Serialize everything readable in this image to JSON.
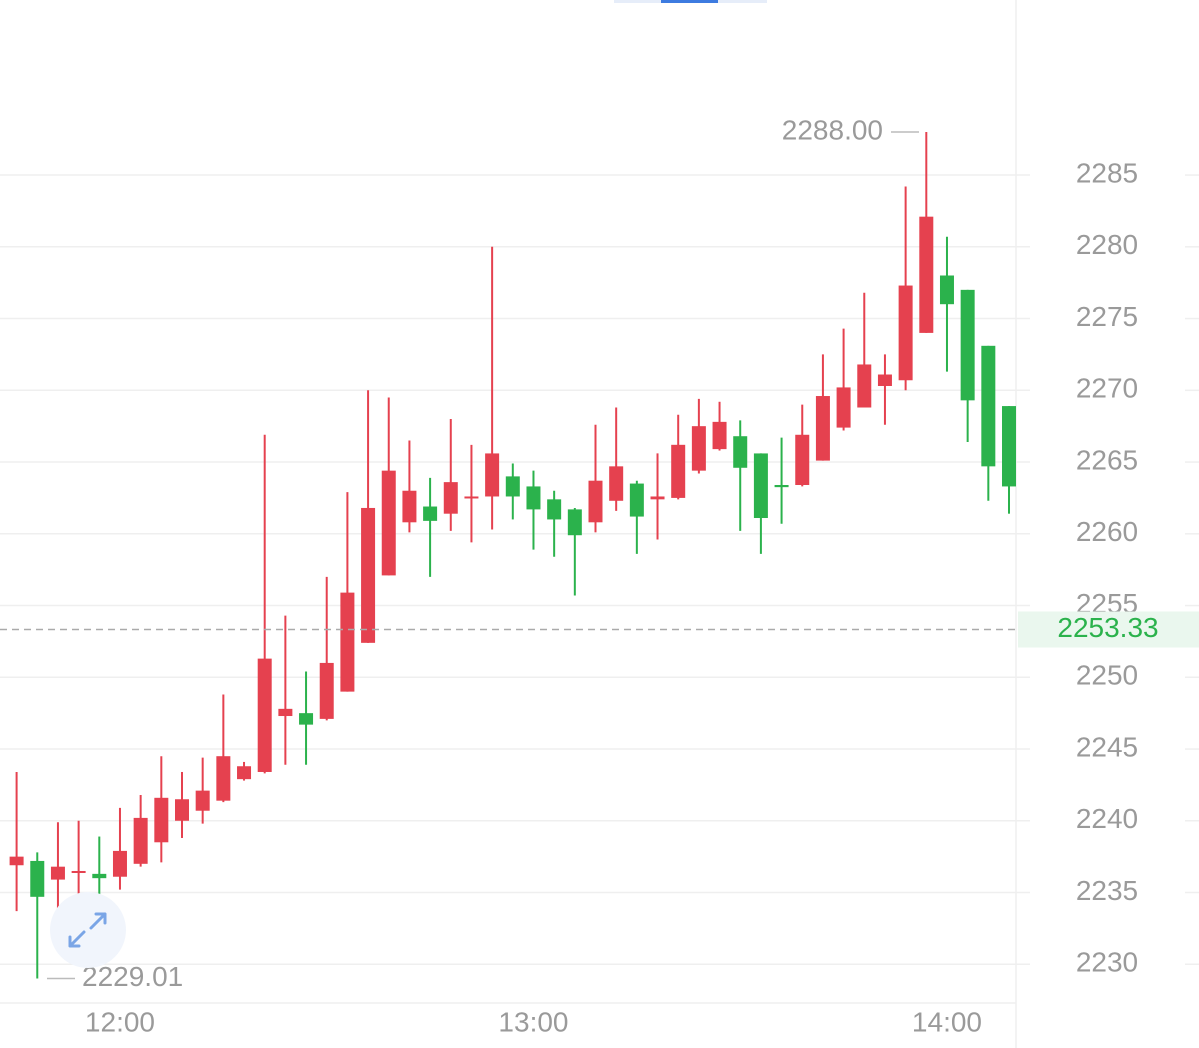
{
  "chart_data": {
    "type": "candlestick",
    "categories": [
      null,
      null,
      null,
      null,
      null,
      "12:00",
      null,
      null,
      null,
      null,
      null,
      null,
      null,
      null,
      null,
      null,
      null,
      null,
      null,
      null,
      null,
      null,
      null,
      null,
      null,
      "13:00",
      null,
      null,
      null,
      null,
      null,
      null,
      null,
      null,
      null,
      null,
      null,
      null,
      null,
      null,
      null,
      null,
      null,
      null,
      null,
      "14:00",
      null,
      null,
      null
    ],
    "open": [
      2236.9,
      2237.2,
      2235.9,
      2236.4,
      2236.3,
      2236.1,
      2237.0,
      2238.5,
      2240.0,
      2240.7,
      2241.4,
      2242.9,
      2243.4,
      2247.3,
      2247.5,
      2247.1,
      2249.0,
      2252.4,
      2257.1,
      2260.8,
      2261.9,
      2261.4,
      2262.5,
      2262.6,
      2264.0,
      2263.3,
      2262.4,
      2261.7,
      2260.8,
      2262.3,
      2263.5,
      2262.4,
      2262.5,
      2264.4,
      2265.9,
      2266.8,
      2265.6,
      2263.4,
      2263.4,
      2265.1,
      2267.4,
      2268.8,
      2270.3,
      2270.7,
      2274.0,
      2278.0,
      2277.0,
      2273.1,
      2268.9
    ],
    "high": [
      2243.4,
      2237.8,
      2239.9,
      2240.0,
      2238.9,
      2240.9,
      2241.8,
      2244.5,
      2243.4,
      2244.4,
      2248.8,
      2244.1,
      2266.9,
      2254.3,
      2250.4,
      2257.0,
      2262.9,
      2270.0,
      2269.5,
      2266.5,
      2263.9,
      2268.0,
      2266.2,
      2280.0,
      2264.9,
      2264.4,
      2263.0,
      2261.8,
      2267.6,
      2268.8,
      2263.7,
      2265.6,
      2268.3,
      2269.4,
      2269.2,
      2267.9,
      2265.6,
      2266.7,
      2269.0,
      2272.5,
      2274.3,
      2276.8,
      2272.5,
      2284.2,
      2288,
      2280.7,
      2277.0,
      2273.1,
      2268.9
    ],
    "low": [
      2233.7,
      2229.01,
      2233.6,
      2234.1,
      2234.6,
      2235.2,
      2236.8,
      2237.1,
      2238.8,
      2239.8,
      2241.3,
      2242.8,
      2243.3,
      2243.9,
      2243.9,
      2247.0,
      2249.0,
      2252.4,
      2257.1,
      2260.1,
      2257.0,
      2260.2,
      2259.4,
      2260.3,
      2261.0,
      2258.9,
      2258.4,
      2255.7,
      2260.1,
      2261.6,
      2258.6,
      2259.6,
      2262.4,
      2264.2,
      2265.8,
      2260.2,
      2258.6,
      2260.7,
      2263.3,
      2265.1,
      2267.2,
      2268.8,
      2267.6,
      2270.0,
      2274.0,
      2271.3,
      2266.4,
      2262.3,
      2261.4
    ],
    "close": [
      2237.5,
      2234.7,
      2236.8,
      2236.5,
      2236.0,
      2237.9,
      2240.2,
      2241.6,
      2241.5,
      2242.1,
      2244.5,
      2243.8,
      2251.3,
      2247.8,
      2246.7,
      2251.0,
      2255.9,
      2261.8,
      2264.4,
      2263.0,
      2260.9,
      2263.6,
      2262.6,
      2265.6,
      2262.6,
      2261.7,
      2261.0,
      2259.9,
      2263.7,
      2264.7,
      2261.2,
      2262.6,
      2266.2,
      2267.5,
      2267.8,
      2264.6,
      2261.1,
      2263.25,
      2266.9,
      2269.6,
      2270.2,
      2271.8,
      2271.1,
      2277.3,
      2282.1,
      2276.0,
      2269.3,
      2264.7,
      2263.3
    ],
    "up_color": "#e5414f",
    "down_color": "#2bb24c",
    "ylim": [
      2227.3,
      2297.2
    ],
    "yticks": [
      2230,
      2235,
      2240,
      2245,
      2250,
      2255,
      2260,
      2265,
      2270,
      2275,
      2280,
      2285
    ],
    "grid": true,
    "max_marker": {
      "value": 2288,
      "label": "2288.00"
    },
    "min_marker": {
      "value": 2229.01,
      "label": "2229.01"
    },
    "last_price": 2253.33
  }
}
